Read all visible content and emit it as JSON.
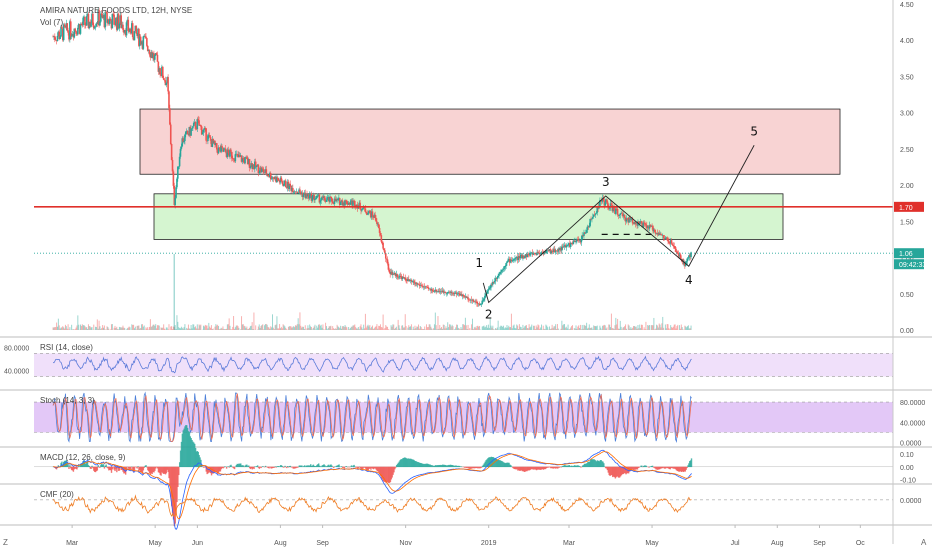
{
  "header": {
    "title": "AMIRA NATURE FOODS LTD, 12H, NYSE",
    "vol": "Vol (7)"
  },
  "colors": {
    "up": "#26a69a",
    "down": "#ef5350",
    "resistance_zone": "#f8d3d3",
    "support_zone": "#d5f5d0",
    "red_line": "#e0302b",
    "price_line": "#26a69a",
    "rsi_line": "#5c7bd9",
    "rsi_band": "#f0e0fa",
    "stoch_k": "#4b7fd9",
    "stoch_d": "#ef6c52",
    "stoch_band": "#e3c8f7",
    "macd_line": "#2962ff",
    "signal_line": "#ff6d00",
    "cmf_line": "#ef7d24"
  },
  "price_axis": {
    "ticks": [
      "4.50",
      "4.00",
      "3.50",
      "3.00",
      "2.50",
      "2.00",
      "1.50",
      "1.00",
      "0.50",
      "0.00"
    ],
    "level_label": "1.70",
    "last_price": "1.06",
    "countdown": "09:42:33"
  },
  "time_axis": {
    "labels": [
      "Mar",
      "May",
      "Jun",
      "Aug",
      "Sep",
      "Nov",
      "2019",
      "Mar",
      "May",
      "Jul",
      "Aug",
      "Sep",
      "Oc"
    ]
  },
  "waves": [
    "1",
    "2",
    "3",
    "4",
    "5"
  ],
  "panes": {
    "rsi": {
      "label": "RSI (14, close)",
      "ticks": [
        "80.0000",
        "40.0000"
      ]
    },
    "stoch": {
      "label": "Stoch (14, 3, 3)",
      "ticks": [
        "80.0000",
        "40.0000",
        "0.0000"
      ]
    },
    "macd": {
      "label": "MACD (12, 26, close, 9)",
      "ticks": [
        "0.10",
        "0.00",
        "-0.10"
      ]
    },
    "cmf": {
      "label": "CMF (20)",
      "ticks": [
        "0.0000"
      ]
    }
  },
  "corner": {
    "left": "Z",
    "right": "A"
  },
  "chart_data": {
    "type": "line",
    "title": "AMIRA NATURE FOODS LTD, 12H, NYSE",
    "ylim": [
      0,
      4.5
    ],
    "price_path": [
      [
        "2018-02-15",
        4.05
      ],
      [
        "2018-03-01",
        4.15
      ],
      [
        "2018-03-20",
        4.3
      ],
      [
        "2018-04-05",
        4.25
      ],
      [
        "2018-04-25",
        3.95
      ],
      [
        "2018-05-10",
        3.4
      ],
      [
        "2018-05-15",
        1.75
      ],
      [
        "2018-05-20",
        2.6
      ],
      [
        "2018-06-01",
        2.85
      ],
      [
        "2018-06-15",
        2.5
      ],
      [
        "2018-07-05",
        2.35
      ],
      [
        "2018-08-01",
        2.05
      ],
      [
        "2018-08-20",
        1.85
      ],
      [
        "2018-09-01",
        1.8
      ],
      [
        "2018-09-25",
        1.75
      ],
      [
        "2018-10-10",
        1.55
      ],
      [
        "2018-10-20",
        0.8
      ],
      [
        "2018-11-01",
        0.7
      ],
      [
        "2018-11-20",
        0.55
      ],
      [
        "2018-12-10",
        0.5
      ],
      [
        "2018-12-26",
        0.35
      ],
      [
        "2019-01-02",
        0.6
      ],
      [
        "2019-01-15",
        0.95
      ],
      [
        "2019-02-01",
        1.05
      ],
      [
        "2019-02-20",
        1.1
      ],
      [
        "2019-03-10",
        1.25
      ],
      [
        "2019-03-25",
        1.8
      ],
      [
        "2019-04-10",
        1.55
      ],
      [
        "2019-05-01",
        1.4
      ],
      [
        "2019-05-15",
        1.2
      ],
      [
        "2019-05-25",
        0.9
      ],
      [
        "2019-05-30",
        1.06
      ]
    ],
    "zones": [
      {
        "name": "resistance",
        "y0": 2.15,
        "y1": 3.05
      },
      {
        "name": "support",
        "y0": 1.25,
        "y1": 1.88
      }
    ],
    "horizontal_level": 1.7,
    "last_price": 1.06,
    "wave_points": [
      {
        "label": "1",
        "date": "2018-12-28",
        "price": 0.65
      },
      {
        "label": "2",
        "date": "2019-01-01",
        "price": 0.38
      },
      {
        "label": "3",
        "date": "2019-03-28",
        "price": 1.85
      },
      {
        "label": "4",
        "date": "2019-05-28",
        "price": 0.88
      },
      {
        "label": "5",
        "date": "2019-07-15",
        "price": 2.55
      }
    ]
  }
}
